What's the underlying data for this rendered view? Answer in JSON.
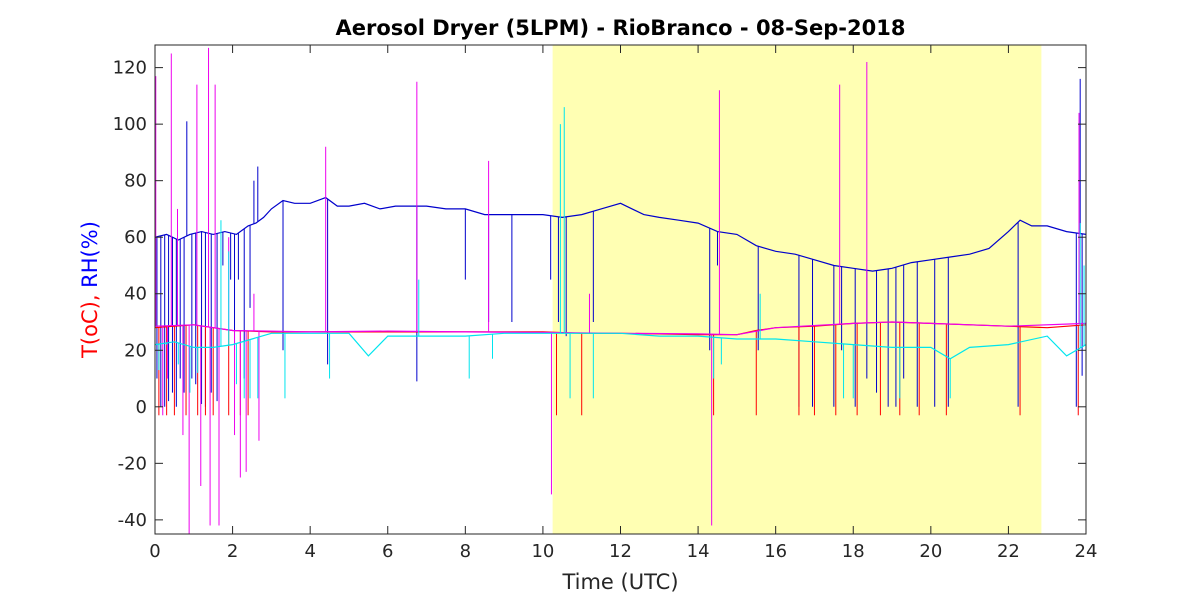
{
  "chart_data": {
    "type": "line",
    "title": "Aerosol Dryer (5LPM) - RioBranco - 08-Sep-2018",
    "xlabel": "Time (UTC)",
    "ylabel_parts": [
      {
        "text": "T(oC), ",
        "color": "#ff0000"
      },
      {
        "text": "RH(%)",
        "color": "#0000ff"
      }
    ],
    "xlim": [
      0,
      24
    ],
    "ylim": [
      -45,
      128
    ],
    "xticks": [
      0,
      2,
      4,
      6,
      8,
      10,
      12,
      14,
      16,
      18,
      20,
      22,
      24
    ],
    "yticks": [
      -40,
      -20,
      0,
      20,
      40,
      60,
      80,
      100,
      120
    ],
    "grid": false,
    "legend": "none",
    "shaded_region": {
      "x_start": 10.25,
      "x_end": 22.85,
      "color": "#ffffb3"
    },
    "series": [
      {
        "color": "#0000cc",
        "x": [
          0,
          0.3,
          0.6,
          0.9,
          1.2,
          1.5,
          1.8,
          2.1,
          2.4,
          2.6,
          2.8,
          3.0,
          3.3,
          3.6,
          4.0,
          4.4,
          4.7,
          5.0,
          5.4,
          5.8,
          6.2,
          6.6,
          7.0,
          7.5,
          8.0,
          8.5,
          9.0,
          9.5,
          10.0,
          10.5,
          11.0,
          11.5,
          12.0,
          12.3,
          12.6,
          13.0,
          13.5,
          14.0,
          14.5,
          15.0,
          15.5,
          16.0,
          16.5,
          17.0,
          17.5,
          18.0,
          18.5,
          19.0,
          19.5,
          20.0,
          20.5,
          21.0,
          21.5,
          22.0,
          22.3,
          22.6,
          23.0,
          23.5,
          24.0
        ],
        "y": [
          60,
          61,
          59,
          61,
          62,
          61,
          62,
          61,
          64,
          65,
          67,
          70,
          73,
          72,
          72,
          74,
          71,
          71,
          72,
          70,
          71,
          71,
          71,
          70,
          70,
          68,
          68,
          68,
          68,
          67,
          68,
          70,
          72,
          70,
          68,
          67,
          66,
          65,
          62,
          61,
          57,
          55,
          54,
          52,
          50,
          49,
          48,
          49,
          51,
          52,
          53,
          54,
          56,
          62,
          66,
          64,
          64,
          62,
          61
        ],
        "spikes": [
          {
            "x": 0.05,
            "y": 10
          },
          {
            "x": 0.15,
            "y": 0
          },
          {
            "x": 0.25,
            "y": 0
          },
          {
            "x": 0.35,
            "y": 2
          },
          {
            "x": 0.45,
            "y": 5
          },
          {
            "x": 0.55,
            "y": 0
          },
          {
            "x": 0.65,
            "y": 10
          },
          {
            "x": 0.75,
            "y": 5
          },
          {
            "x": 0.82,
            "y": 101
          },
          {
            "x": 0.95,
            "y": 10
          },
          {
            "x": 1.05,
            "y": 8
          },
          {
            "x": 1.2,
            "y": 1
          },
          {
            "x": 1.3,
            "y": 0
          },
          {
            "x": 1.45,
            "y": 5
          },
          {
            "x": 1.6,
            "y": 2
          },
          {
            "x": 1.75,
            "y": 50
          },
          {
            "x": 1.95,
            "y": 45
          },
          {
            "x": 2.05,
            "y": 20
          },
          {
            "x": 2.15,
            "y": 45
          },
          {
            "x": 2.3,
            "y": 10
          },
          {
            "x": 2.45,
            "y": 35
          },
          {
            "x": 2.55,
            "y": 80
          },
          {
            "x": 2.65,
            "y": 85
          },
          {
            "x": 3.3,
            "y": 20
          },
          {
            "x": 4.45,
            "y": 15
          },
          {
            "x": 6.75,
            "y": 9
          },
          {
            "x": 8.0,
            "y": 45
          },
          {
            "x": 8.6,
            "y": 30
          },
          {
            "x": 9.2,
            "y": 30
          },
          {
            "x": 10.2,
            "y": 45
          },
          {
            "x": 10.4,
            "y": 30
          },
          {
            "x": 10.6,
            "y": 25
          },
          {
            "x": 11.3,
            "y": 30
          },
          {
            "x": 14.3,
            "y": 20
          },
          {
            "x": 14.5,
            "y": 50
          },
          {
            "x": 15.55,
            "y": 20
          },
          {
            "x": 16.6,
            "y": 0
          },
          {
            "x": 16.95,
            "y": 0
          },
          {
            "x": 17.5,
            "y": 0
          },
          {
            "x": 17.7,
            "y": 20
          },
          {
            "x": 18.05,
            "y": 0
          },
          {
            "x": 18.35,
            "y": 10
          },
          {
            "x": 18.6,
            "y": 5
          },
          {
            "x": 18.9,
            "y": 0
          },
          {
            "x": 19.1,
            "y": 0
          },
          {
            "x": 19.3,
            "y": 10
          },
          {
            "x": 19.65,
            "y": 0
          },
          {
            "x": 20.1,
            "y": 0
          },
          {
            "x": 20.45,
            "y": 0
          },
          {
            "x": 22.25,
            "y": 0
          },
          {
            "x": 23.75,
            "y": 0
          },
          {
            "x": 23.85,
            "y": 116
          },
          {
            "x": 23.9,
            "y": 11
          }
        ]
      },
      {
        "color": "#ff0000",
        "x": [
          0,
          0.5,
          1.0,
          1.5,
          2.0,
          3.0,
          4.0,
          5.0,
          6.0,
          7.0,
          8.0,
          9.0,
          10.0,
          11.0,
          12.0,
          13.0,
          14.0,
          15.0,
          15.5,
          16.0,
          17.0,
          18.0,
          19.0,
          20.0,
          21.0,
          22.0,
          23.0,
          24.0
        ],
        "y": [
          28,
          28.5,
          29,
          28,
          27,
          26.5,
          26.5,
          26.5,
          26.5,
          26.5,
          26.5,
          26.5,
          26.5,
          26,
          26,
          25.8,
          25.5,
          25.5,
          27,
          28,
          28.5,
          29.5,
          30,
          29.5,
          29,
          28.5,
          28,
          29
        ],
        "spikes": [
          {
            "x": 0.1,
            "y": -3
          },
          {
            "x": 0.3,
            "y": -3
          },
          {
            "x": 0.5,
            "y": -3
          },
          {
            "x": 0.8,
            "y": -3
          },
          {
            "x": 1.1,
            "y": -3
          },
          {
            "x": 1.3,
            "y": -3
          },
          {
            "x": 1.5,
            "y": -3
          },
          {
            "x": 1.9,
            "y": -3
          },
          {
            "x": 2.2,
            "y": -3
          },
          {
            "x": 2.4,
            "y": -3
          },
          {
            "x": 10.35,
            "y": -3
          },
          {
            "x": 11.0,
            "y": -3
          },
          {
            "x": 14.4,
            "y": -3
          },
          {
            "x": 15.5,
            "y": -3
          },
          {
            "x": 16.6,
            "y": -3
          },
          {
            "x": 17.0,
            "y": -3
          },
          {
            "x": 17.55,
            "y": -3
          },
          {
            "x": 18.1,
            "y": -3
          },
          {
            "x": 18.7,
            "y": -3
          },
          {
            "x": 19.2,
            "y": -3
          },
          {
            "x": 19.7,
            "y": -3
          },
          {
            "x": 20.4,
            "y": -3
          },
          {
            "x": 22.3,
            "y": -3
          },
          {
            "x": 23.8,
            "y": -3
          }
        ]
      },
      {
        "color": "#ee00ee",
        "x": [
          0,
          1.0,
          2.0,
          4.0,
          6.0,
          8.0,
          10.0,
          12.0,
          14.0,
          15.0,
          16.0,
          18.0,
          19.0,
          20.0,
          22.0,
          24.0
        ],
        "y": [
          28.5,
          29,
          27,
          26.5,
          26.8,
          26.5,
          26.3,
          26,
          25.8,
          25.5,
          28,
          29.5,
          30,
          29.5,
          28.5,
          29.5
        ],
        "spikes": [
          {
            "x": 0.02,
            "y": 117
          },
          {
            "x": 0.2,
            "y": -3
          },
          {
            "x": 0.32,
            "y": 10
          },
          {
            "x": 0.42,
            "y": 125
          },
          {
            "x": 0.58,
            "y": 70
          },
          {
            "x": 0.72,
            "y": -10
          },
          {
            "x": 0.88,
            "y": -45
          },
          {
            "x": 1.08,
            "y": 114
          },
          {
            "x": 1.18,
            "y": -28
          },
          {
            "x": 1.38,
            "y": 127
          },
          {
            "x": 1.42,
            "y": -42
          },
          {
            "x": 1.55,
            "y": 114
          },
          {
            "x": 1.65,
            "y": -42
          },
          {
            "x": 1.9,
            "y": 60
          },
          {
            "x": 2.05,
            "y": -10
          },
          {
            "x": 2.2,
            "y": -25
          },
          {
            "x": 2.35,
            "y": -23
          },
          {
            "x": 2.55,
            "y": 40
          },
          {
            "x": 2.68,
            "y": -12
          },
          {
            "x": 4.4,
            "y": 92
          },
          {
            "x": 6.75,
            "y": 115
          },
          {
            "x": 8.6,
            "y": 87
          },
          {
            "x": 10.22,
            "y": -31
          },
          {
            "x": 11.2,
            "y": 40
          },
          {
            "x": 14.35,
            "y": -42
          },
          {
            "x": 14.55,
            "y": 112
          },
          {
            "x": 17.65,
            "y": 114
          },
          {
            "x": 18.35,
            "y": 122
          },
          {
            "x": 23.82,
            "y": 104
          }
        ]
      },
      {
        "color": "#00e5ee",
        "x": [
          0,
          0.5,
          1.0,
          1.5,
          2.0,
          2.5,
          3.0,
          4.0,
          5.0,
          5.5,
          6.0,
          7.0,
          8.0,
          9.0,
          10.0,
          11.0,
          12.0,
          13.0,
          14.0,
          15.0,
          16.0,
          17.0,
          18.0,
          19.0,
          20.0,
          20.5,
          21.0,
          22.0,
          23.0,
          23.5,
          24.0
        ],
        "y": [
          22,
          23,
          21,
          21,
          22,
          24,
          26,
          26,
          26,
          18,
          25,
          25,
          25,
          26,
          26,
          26,
          26,
          25,
          25,
          24,
          24,
          23,
          22,
          21,
          21,
          17,
          21,
          22,
          25,
          18,
          22
        ],
        "spikes": [
          {
            "x": 0.1,
            "y": 13
          },
          {
            "x": 0.3,
            "y": 22
          },
          {
            "x": 0.6,
            "y": 15
          },
          {
            "x": 0.9,
            "y": 5
          },
          {
            "x": 1.1,
            "y": 12
          },
          {
            "x": 1.7,
            "y": 66
          },
          {
            "x": 1.9,
            "y": 55
          },
          {
            "x": 2.1,
            "y": 8
          },
          {
            "x": 2.3,
            "y": 3
          },
          {
            "x": 2.45,
            "y": 3
          },
          {
            "x": 2.65,
            "y": 3
          },
          {
            "x": 3.35,
            "y": 3
          },
          {
            "x": 4.5,
            "y": 10
          },
          {
            "x": 6.8,
            "y": 45
          },
          {
            "x": 8.1,
            "y": 10
          },
          {
            "x": 8.7,
            "y": 17
          },
          {
            "x": 10.45,
            "y": 100
          },
          {
            "x": 10.55,
            "y": 106
          },
          {
            "x": 10.7,
            "y": 3
          },
          {
            "x": 11.3,
            "y": 3
          },
          {
            "x": 14.4,
            "y": 10
          },
          {
            "x": 14.6,
            "y": 15
          },
          {
            "x": 15.6,
            "y": 40
          },
          {
            "x": 17.75,
            "y": 3
          },
          {
            "x": 18.0,
            "y": 3
          },
          {
            "x": 19.2,
            "y": 3
          },
          {
            "x": 20.5,
            "y": 3
          },
          {
            "x": 23.85,
            "y": 65
          },
          {
            "x": 23.95,
            "y": 50
          }
        ]
      }
    ]
  }
}
